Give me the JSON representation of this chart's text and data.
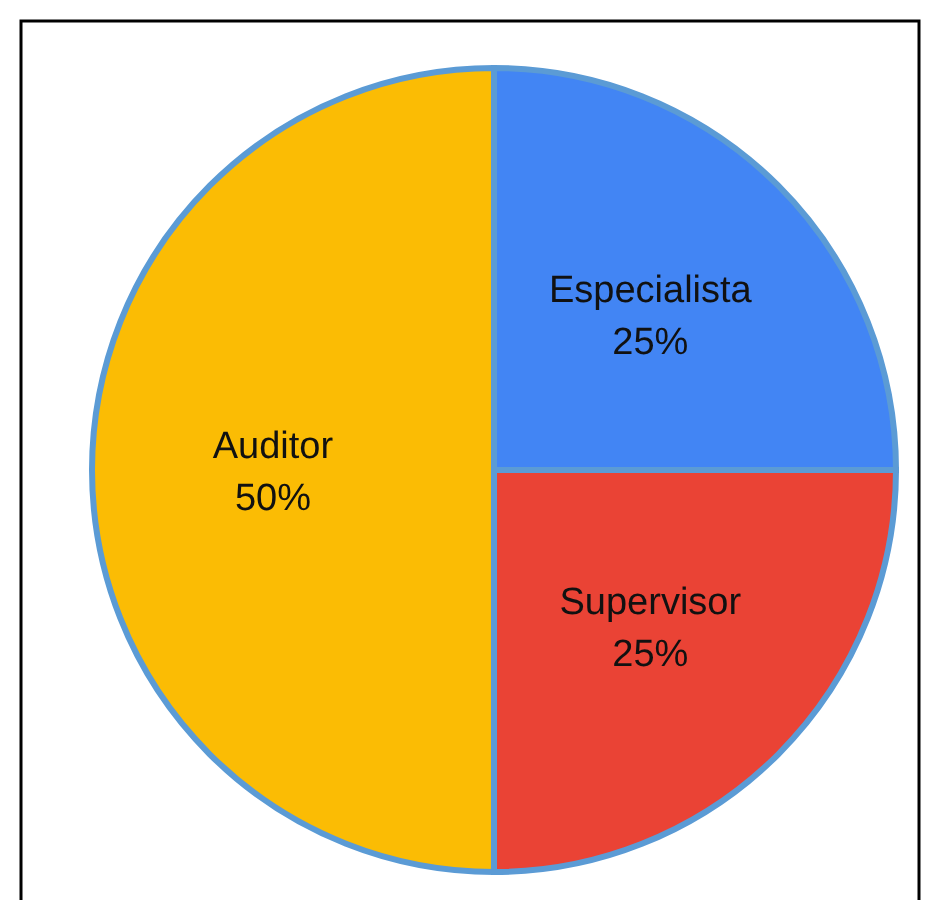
{
  "chart_data": {
    "type": "pie",
    "categories": [
      "Especialista",
      "Supervisor",
      "Auditor"
    ],
    "values": [
      25,
      25,
      50
    ],
    "colors": [
      "#4285f4",
      "#ea4335",
      "#fbbc04"
    ],
    "value_labels": [
      "25%",
      "25%",
      "50%"
    ]
  }
}
